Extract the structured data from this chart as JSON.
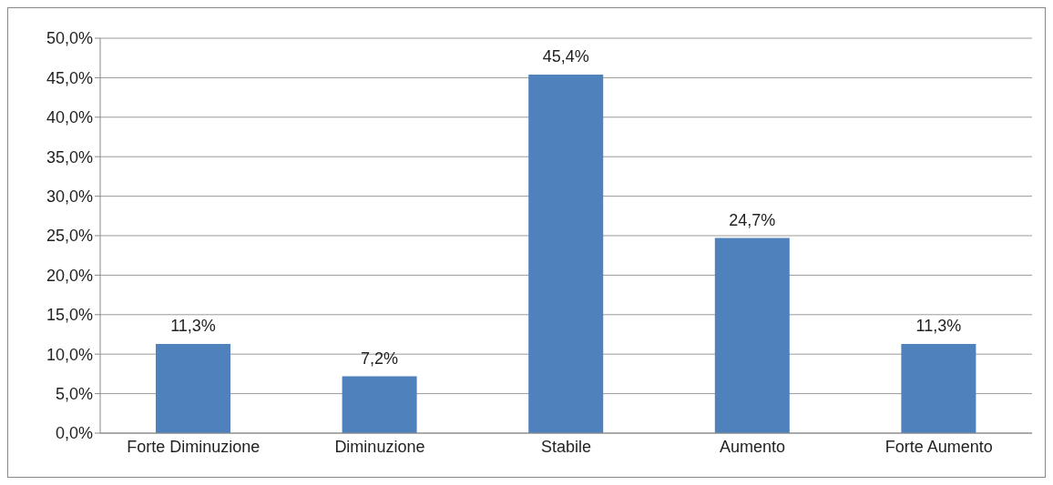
{
  "chart_data": {
    "type": "bar",
    "categories": [
      "Forte Diminuzione",
      "Diminuzione",
      "Stabile",
      "Aumento",
      "Forte Aumento"
    ],
    "values": [
      11.3,
      7.2,
      45.4,
      24.7,
      11.3
    ],
    "value_labels": [
      "11,3%",
      "7,2%",
      "45,4%",
      "24,7%",
      "11,3%"
    ],
    "color": "#4f81bd",
    "ylim": [
      0,
      50
    ],
    "yticks": [
      {
        "value": 0,
        "label": "0,0%"
      },
      {
        "value": 5,
        "label": "5,0%"
      },
      {
        "value": 10,
        "label": "10,0%"
      },
      {
        "value": 15,
        "label": "15,0%"
      },
      {
        "value": 20,
        "label": "20,0%"
      },
      {
        "value": 25,
        "label": "25,0%"
      },
      {
        "value": 30,
        "label": "30,0%"
      },
      {
        "value": 35,
        "label": "35,0%"
      },
      {
        "value": 40,
        "label": "40,0%"
      },
      {
        "value": 45,
        "label": "45,0%"
      },
      {
        "value": 50,
        "label": "50,0%"
      }
    ],
    "grid": "y"
  }
}
